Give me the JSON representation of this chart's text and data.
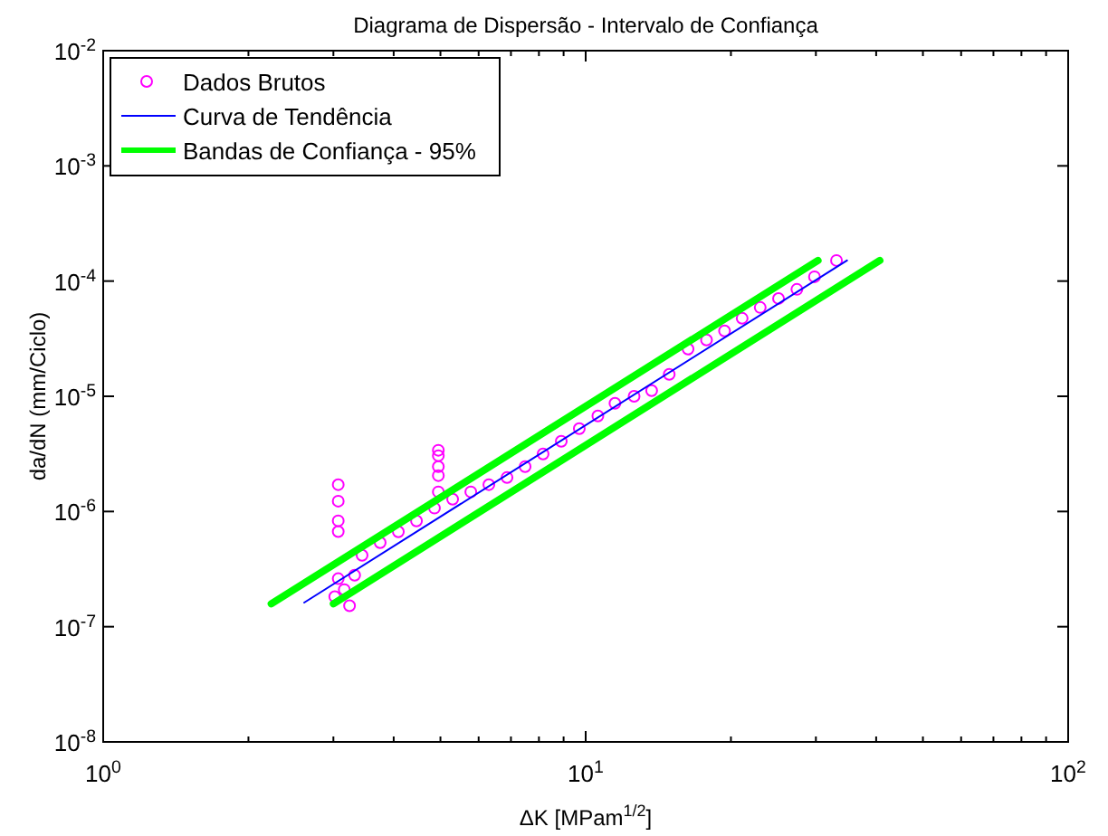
{
  "chart_data": {
    "type": "scatter",
    "title": "Diagrama de Dispersão - Intervalo de Confiança",
    "xlabel": "ΔK [MPam$^{1/2}$]",
    "ylabel": "da/dN (mm/Ciclo)",
    "log": "xy",
    "grid": false,
    "legend": "top left",
    "xlim": [
      1,
      100
    ],
    "xticks": [
      {
        "value": 1,
        "label": "10$^{0}$"
      },
      {
        "value": 2,
        "label": null
      },
      {
        "value": 3,
        "label": null
      },
      {
        "value": 4,
        "label": null
      },
      {
        "value": 5,
        "label": null
      },
      {
        "value": 6,
        "label": null
      },
      {
        "value": 7,
        "label": null
      },
      {
        "value": 8,
        "label": null
      },
      {
        "value": 9,
        "label": null
      },
      {
        "value": 10,
        "label": "10$^{1}$"
      },
      {
        "value": 20,
        "label": null
      },
      {
        "value": 30,
        "label": null
      },
      {
        "value": 40,
        "label": null
      },
      {
        "value": 50,
        "label": null
      },
      {
        "value": 60,
        "label": null
      },
      {
        "value": 70,
        "label": null
      },
      {
        "value": 80,
        "label": null
      },
      {
        "value": 90,
        "label": null
      },
      {
        "value": 100,
        "label": "10$^{2}$"
      }
    ],
    "ylim": [
      1e-08,
      0.01
    ],
    "yticks": [
      {
        "value": 1e-08,
        "label": "10$^{-8}$"
      },
      {
        "value": 1e-07,
        "label": "10$^{-7}$"
      },
      {
        "value": 1e-06,
        "label": "10$^{-6}$"
      },
      {
        "value": 1e-05,
        "label": "10$^{-5}$"
      },
      {
        "value": 0.0001,
        "label": "10$^{-4}$"
      },
      {
        "value": 0.001,
        "label": "10$^{-3}$"
      },
      {
        "value": 0.01,
        "label": "10$^{-2}$"
      }
    ],
    "series": [
      {
        "name": "Dados Brutos",
        "marker": "circle",
        "color": "#ff00ff",
        "x": [
          3.07,
          3.07,
          3.07,
          3.07,
          4.95,
          4.95,
          4.95,
          4.95,
          4.95,
          3.02,
          3.07,
          3.16,
          3.24,
          3.32,
          3.44,
          3.75,
          4.09,
          4.46,
          4.86,
          5.3,
          5.78,
          6.3,
          6.87,
          7.49,
          8.16,
          8.9,
          9.7,
          10.6,
          11.5,
          12.6,
          13.7,
          14.9,
          16.3,
          17.8,
          19.4,
          21.1,
          23.0,
          25.1,
          27.4,
          29.8,
          33.1
        ],
        "values": [
          1.71e-06,
          1.23e-06,
          8.3e-07,
          6.7e-07,
          3.4e-06,
          3.05e-06,
          2.45e-06,
          2.05e-06,
          1.48e-06,
          1.82e-07,
          2.61e-07,
          2.1e-07,
          1.52e-07,
          2.8e-07,
          4.17e-07,
          5.37e-07,
          6.67e-07,
          8.28e-07,
          1.07e-06,
          1.28e-06,
          1.48e-06,
          1.71e-06,
          1.97e-06,
          2.45e-06,
          3.16e-06,
          4.07e-06,
          5.24e-06,
          6.75e-06,
          8.69e-06,
          1e-05,
          1.12e-05,
          1.55e-05,
          2.57e-05,
          3.08e-05,
          3.69e-05,
          4.75e-05,
          5.9e-05,
          7.06e-05,
          8.47e-05,
          0.000109,
          0.000151
        ]
      },
      {
        "name": "Curva de Tendência",
        "type": "line",
        "line_style": "solid",
        "color": "#0000ff",
        "x": [
          2.61,
          34.8
        ],
        "values": [
          1.62e-07,
          0.000151
        ]
      },
      {
        "name": "Bandas de Confiança - 95%",
        "type": "line",
        "line_style": "solid",
        "color": "#00ff00",
        "x": [
          2.23,
          30.3
        ],
        "values": [
          1.58e-07,
          0.000151
        ]
      },
      {
        "type": "line",
        "line_style": "solid",
        "color": "#00ff00",
        "x": [
          3.0,
          40.7
        ],
        "values": [
          1.58e-07,
          0.000151
        ]
      }
    ]
  }
}
